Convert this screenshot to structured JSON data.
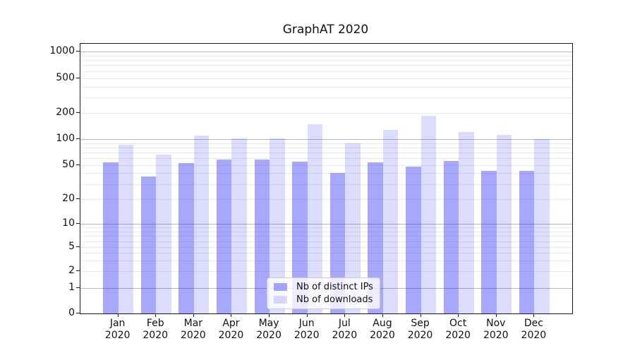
{
  "figure": {
    "background": "#ffffff"
  },
  "chart_data": {
    "type": "bar",
    "title": "GraphAT 2020",
    "categories": [
      "Jan",
      "Feb",
      "Mar",
      "Apr",
      "May",
      "Jun",
      "Jul",
      "Aug",
      "Sep",
      "Oct",
      "Nov",
      "Dec"
    ],
    "category_year": "2020",
    "series": [
      {
        "name": "Nb of distinct IPs",
        "color": "rgba(45,45,245,0.42)",
        "values": [
          54,
          37,
          53,
          58,
          58,
          55,
          40,
          54,
          48,
          56,
          43,
          43
        ]
      },
      {
        "name": "Nb of downloads",
        "color": "rgba(45,45,245,0.17)",
        "values": [
          86,
          66,
          110,
          101,
          102,
          150,
          90,
          128,
          185,
          120,
          111,
          100
        ]
      }
    ],
    "xlabel": "",
    "ylabel": "",
    "yscale": "symlog",
    "yticks": [
      0,
      1,
      2,
      5,
      10,
      20,
      50,
      100,
      200,
      500,
      1000
    ],
    "ylim": [
      0,
      1235
    ],
    "grid": "horizontal major+minor",
    "legend_position": "lower center",
    "colors": {
      "major_grid": "#b6b6b6",
      "minor_grid": "#eaeaea",
      "spine": "#1a1a1a",
      "tick": "#1a1a1a",
      "text": "#111111",
      "legend_border": "#cccccc",
      "legend_bg": "rgba(255,255,255,0.8)"
    }
  }
}
